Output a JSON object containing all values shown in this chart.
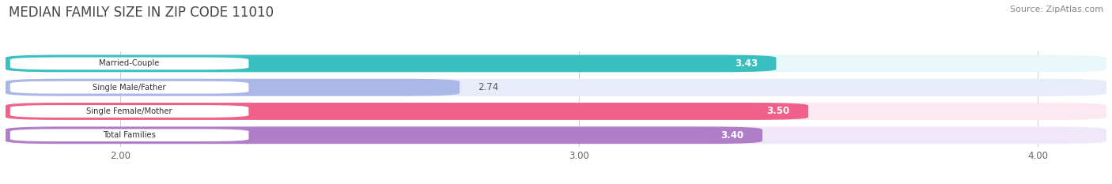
{
  "title": "MEDIAN FAMILY SIZE IN ZIP CODE 11010",
  "source": "Source: ZipAtlas.com",
  "categories": [
    "Married-Couple",
    "Single Male/Father",
    "Single Female/Mother",
    "Total Families"
  ],
  "values": [
    3.43,
    2.74,
    3.5,
    3.4
  ],
  "bar_colors": [
    "#39bfbf",
    "#aab8e8",
    "#f0608a",
    "#b07ec8"
  ],
  "bar_bg_colors": [
    "#e8f7f7",
    "#e8ecf8",
    "#fce8f0",
    "#f0e8f8"
  ],
  "value_in_bar": [
    true,
    false,
    true,
    true
  ],
  "xlim_left": 1.75,
  "xlim_right": 4.15,
  "xticks": [
    2.0,
    3.0,
    4.0
  ],
  "xtick_labels": [
    "2.00",
    "3.00",
    "4.00"
  ],
  "title_fontsize": 12,
  "source_fontsize": 8,
  "bar_height": 0.72,
  "bar_gap": 0.28,
  "figsize": [
    14.06,
    2.33
  ],
  "dpi": 100
}
